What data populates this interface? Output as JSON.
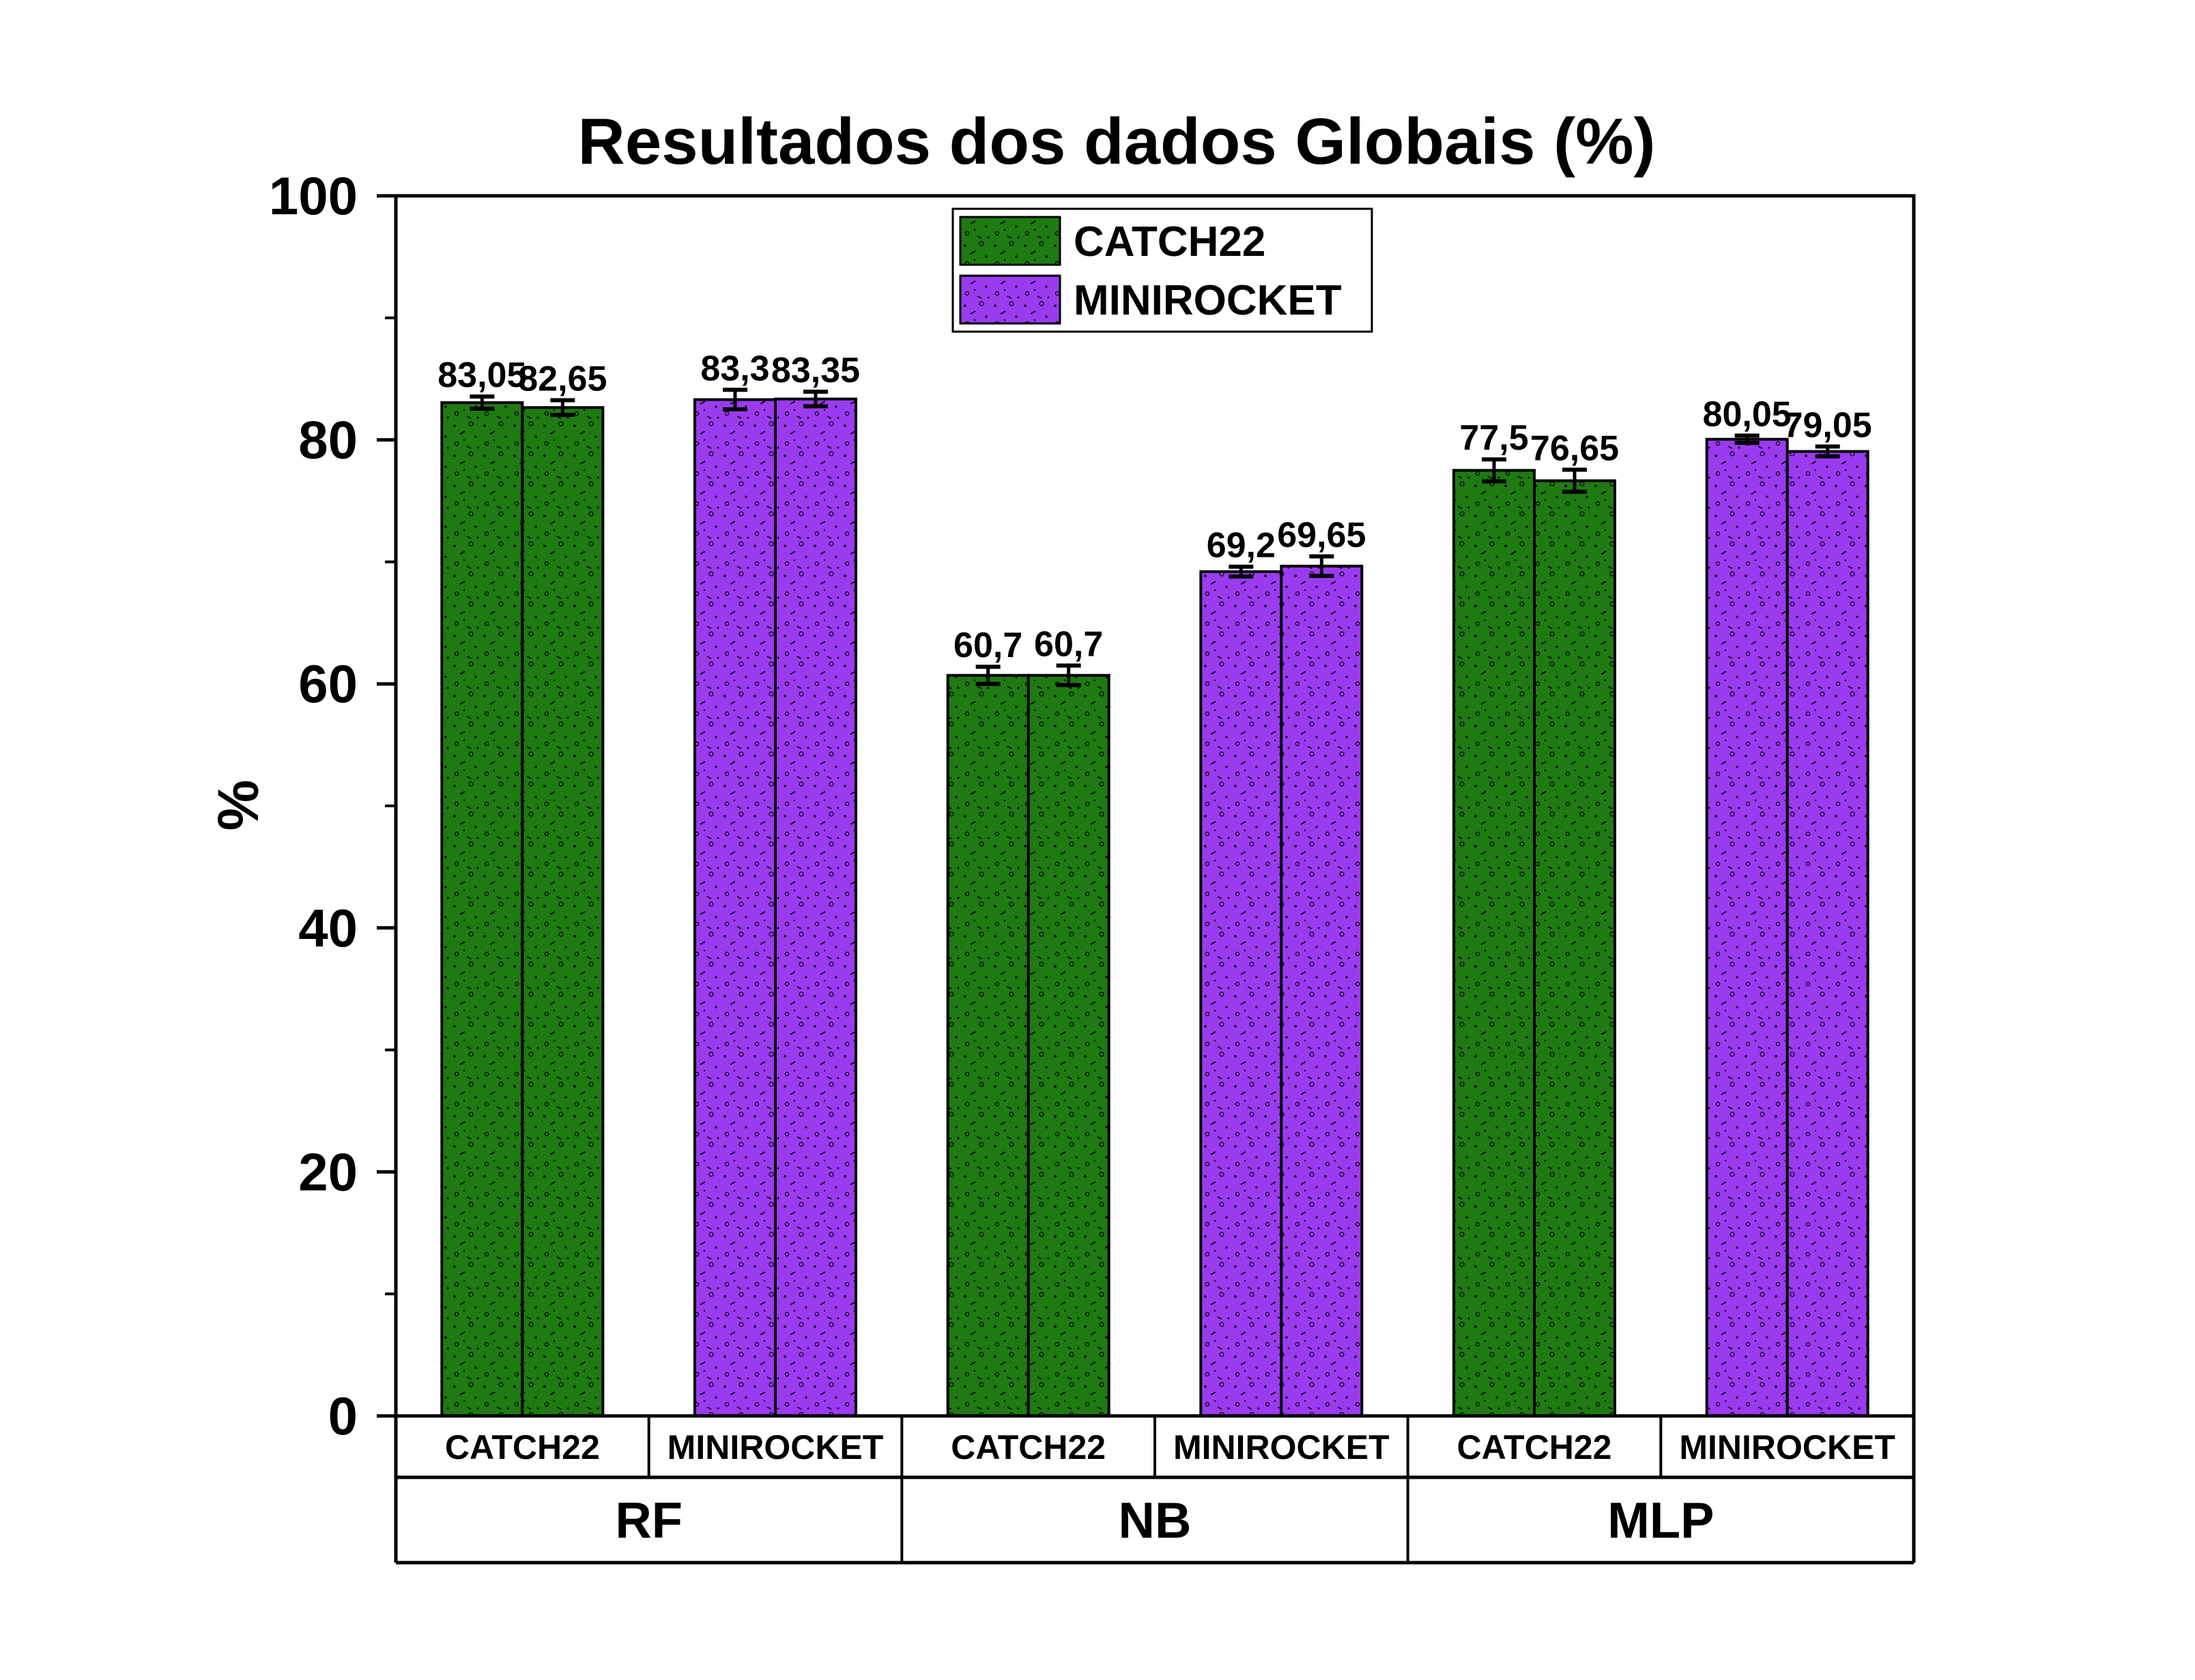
{
  "chart_data": {
    "type": "bar",
    "title": "Resultados dos dados Globais (%)",
    "ylabel": "%",
    "xlabel": "",
    "ylim": [
      0,
      100
    ],
    "yticks": [
      0,
      20,
      40,
      60,
      80,
      100
    ],
    "grid": false,
    "legend": {
      "position": "top-center",
      "entries": [
        {
          "name": "CATCH22",
          "color": "#1f7a12"
        },
        {
          "name": "MINIROCKET",
          "color": "#9b3bf0"
        }
      ]
    },
    "groups": [
      {
        "name": "RF",
        "subgroups": [
          {
            "label": "CATCH22",
            "series": "CATCH22",
            "bars": [
              {
                "value": 83.05,
                "label": "83,05",
                "err": 0.5
              },
              {
                "value": 82.65,
                "label": "82,65",
                "err": 0.6
              }
            ]
          },
          {
            "label": "MINIROCKET",
            "series": "MINIROCKET",
            "bars": [
              {
                "value": 83.3,
                "label": "83,3",
                "err": 0.8
              },
              {
                "value": 83.35,
                "label": "83,35",
                "err": 0.6
              }
            ]
          }
        ]
      },
      {
        "name": "NB",
        "subgroups": [
          {
            "label": "CATCH22",
            "series": "CATCH22",
            "bars": [
              {
                "value": 60.7,
                "label": "60,7",
                "err": 0.7
              },
              {
                "value": 60.7,
                "label": "60,7",
                "err": 0.8
              }
            ]
          },
          {
            "label": "MINIROCKET",
            "series": "MINIROCKET",
            "bars": [
              {
                "value": 69.2,
                "label": "69,2",
                "err": 0.4
              },
              {
                "value": 69.65,
                "label": "69,65",
                "err": 0.8
              }
            ]
          }
        ]
      },
      {
        "name": "MLP",
        "subgroups": [
          {
            "label": "CATCH22",
            "series": "CATCH22",
            "bars": [
              {
                "value": 77.5,
                "label": "77,5",
                "err": 0.9
              },
              {
                "value": 76.65,
                "label": "76,65",
                "err": 0.9
              }
            ]
          },
          {
            "label": "MINIROCKET",
            "series": "MINIROCKET",
            "bars": [
              {
                "value": 80.05,
                "label": "80,05",
                "err": 0.3
              },
              {
                "value": 79.05,
                "label": "79,05",
                "err": 0.4
              }
            ]
          }
        ]
      }
    ]
  }
}
